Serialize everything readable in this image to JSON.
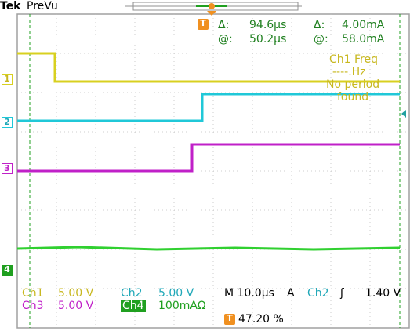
{
  "header": {
    "brand": "Tek",
    "mode": "PreVu"
  },
  "trigger": {
    "marker": "T",
    "position_readout": "47.20 %"
  },
  "cursor_readout": {
    "delta_label_1": "Δ:",
    "delta_time": "94.6µs",
    "delta_label_2": "Δ:",
    "delta_current": "4.00mA",
    "at_label_1": "@:",
    "at_time": "50.2µs",
    "at_label_2": "@:",
    "at_current": "58.0mA"
  },
  "measurement": {
    "title": "Ch1 Freq",
    "value": "----.Hz",
    "note_line1": "No period",
    "note_line2": "found"
  },
  "channels": [
    {
      "marker": "1",
      "label": "Ch1",
      "scale": "5.00 V",
      "color": "#d8d020"
    },
    {
      "marker": "2",
      "label": "Ch2",
      "scale": "5.00 V",
      "color": "#20c8d8"
    },
    {
      "marker": "3",
      "label": "Ch3",
      "scale": "5.00 V",
      "color": "#c020c8"
    },
    {
      "marker": "4",
      "label": "Ch4",
      "scale": "100mAΩ",
      "color": "#20c020"
    }
  ],
  "status": {
    "timebase": "M 10.0µs",
    "acq": "A",
    "trig_source": "Ch2",
    "trig_slope": "ʃ",
    "trig_level": "1.40 V"
  },
  "colors": {
    "ch1": "#d8d020",
    "ch2": "#20c8d8",
    "ch3": "#c020c8",
    "ch4": "#30d030",
    "grid": "#a0a0a0",
    "cursor": "#20a020",
    "trigger": "#f09020",
    "readout": "#208020"
  }
}
